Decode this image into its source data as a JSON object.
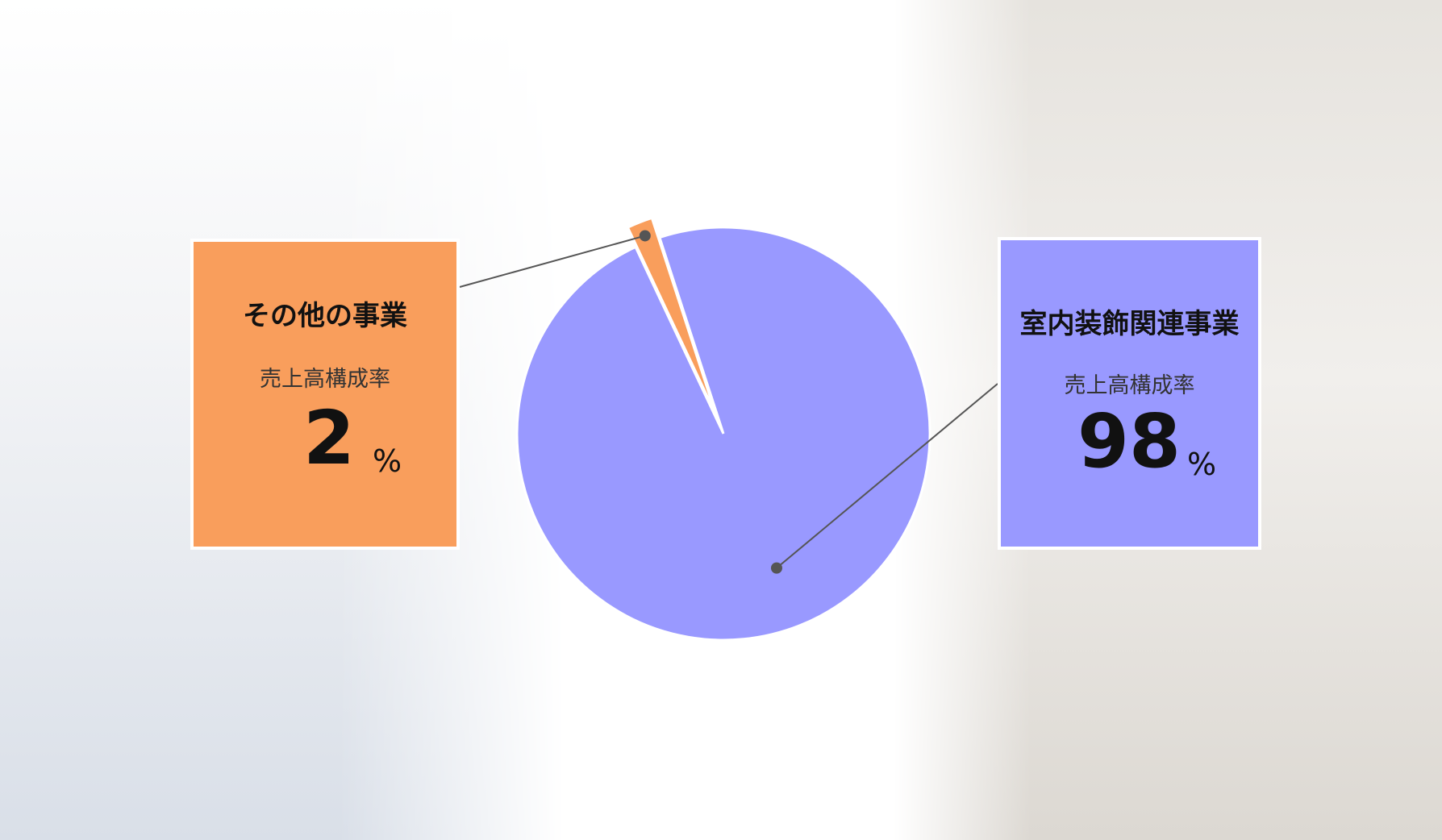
{
  "chart_data": {
    "type": "pie",
    "categories": [
      "その他の事業",
      "室内装飾関連事業"
    ],
    "values": [
      2,
      98
    ],
    "colors": [
      "#f99e5c",
      "#9999ff"
    ],
    "metric_label": "売上高構成率",
    "unit": "%"
  }
}
